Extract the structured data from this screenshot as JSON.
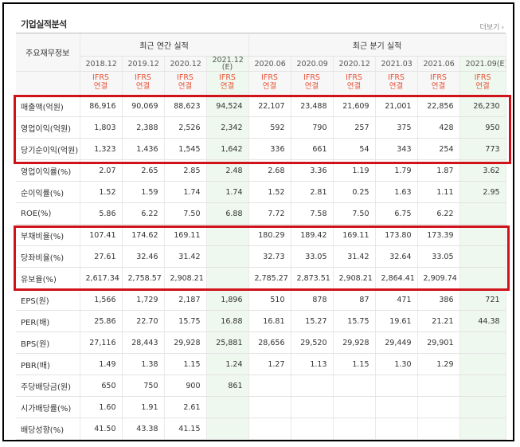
{
  "header": {
    "title": "기업실적분석",
    "more_label": "더보기",
    "more_chevron": "›"
  },
  "groups": {
    "annual": "최근 연간 실적",
    "quarterly": "최근 분기 실적"
  },
  "row_header_label": "주요재무정보",
  "periods": [
    "2018.12",
    "2019.12",
    "2020.12",
    "2021.12\n(E)",
    "2020.06",
    "2020.09",
    "2020.12",
    "2021.03",
    "2021.06",
    "2021.09(E)"
  ],
  "ifrs_label": "IFRS\n연결",
  "rows": [
    {
      "label": "매출액(억원)",
      "values": [
        "86,916",
        "90,069",
        "88,623",
        "94,524",
        "22,107",
        "23,488",
        "21,609",
        "21,001",
        "22,856",
        "26,230"
      ]
    },
    {
      "label": "영업이익(억원)",
      "values": [
        "1,803",
        "2,388",
        "2,526",
        "2,342",
        "592",
        "790",
        "257",
        "375",
        "428",
        "950"
      ]
    },
    {
      "label": "당기순이익(억원)",
      "values": [
        "1,323",
        "1,436",
        "1,545",
        "1,642",
        "336",
        "661",
        "54",
        "343",
        "254",
        "773"
      ]
    },
    {
      "label": "영업이익률(%)",
      "values": [
        "2.07",
        "2.65",
        "2.85",
        "2.48",
        "2.68",
        "3.36",
        "1.19",
        "1.79",
        "1.87",
        "3.62"
      ]
    },
    {
      "label": "순이익률(%)",
      "values": [
        "1.52",
        "1.59",
        "1.74",
        "1.74",
        "1.52",
        "2.81",
        "0.25",
        "1.63",
        "1.11",
        "2.95"
      ]
    },
    {
      "label": "ROE(%)",
      "values": [
        "5.86",
        "6.22",
        "7.50",
        "6.88",
        "7.72",
        "7.58",
        "7.50",
        "6.75",
        "6.22",
        ""
      ]
    },
    {
      "label": "부채비율(%)",
      "values": [
        "107.41",
        "174.62",
        "169.11",
        "",
        "180.29",
        "189.42",
        "169.11",
        "173.80",
        "173.39",
        ""
      ]
    },
    {
      "label": "당좌비율(%)",
      "values": [
        "27.61",
        "32.46",
        "31.42",
        "",
        "32.73",
        "33.05",
        "31.42",
        "32.64",
        "33.05",
        ""
      ]
    },
    {
      "label": "유보율(%)",
      "values": [
        "2,617.34",
        "2,758.57",
        "2,908.21",
        "",
        "2,785.27",
        "2,873.51",
        "2,908.21",
        "2,864.41",
        "2,909.74",
        ""
      ]
    },
    {
      "label": "EPS(원)",
      "values": [
        "1,566",
        "1,729",
        "2,187",
        "1,896",
        "510",
        "878",
        "87",
        "471",
        "386",
        "721"
      ]
    },
    {
      "label": "PER(배)",
      "values": [
        "25.86",
        "22.70",
        "15.75",
        "16.88",
        "16.81",
        "15.27",
        "15.75",
        "19.61",
        "21.21",
        "44.38"
      ]
    },
    {
      "label": "BPS(원)",
      "values": [
        "27,116",
        "28,443",
        "29,928",
        "25,881",
        "28,656",
        "29,520",
        "29,928",
        "29,449",
        "29,901",
        ""
      ]
    },
    {
      "label": "PBR(배)",
      "values": [
        "1.49",
        "1.38",
        "1.15",
        "1.24",
        "1.27",
        "1.13",
        "1.15",
        "1.30",
        "1.29",
        ""
      ]
    },
    {
      "label": "주당배당금(원)",
      "values": [
        "650",
        "750",
        "900",
        "861",
        "",
        "",
        "",
        "",
        "",
        ""
      ]
    },
    {
      "label": "시가배당률(%)",
      "values": [
        "1.60",
        "1.91",
        "2.61",
        "",
        "",
        "",
        "",
        "",
        "",
        ""
      ]
    },
    {
      "label": "배당성향(%)",
      "values": [
        "41.50",
        "43.38",
        "41.15",
        "",
        "",
        "",
        "",
        "",
        "",
        ""
      ]
    }
  ],
  "estimate_columns": [
    3,
    9
  ],
  "colors": {
    "highlight": "#d0121b",
    "ifrs": "#e8563c",
    "estimate_bg": "#eef8ee"
  }
}
